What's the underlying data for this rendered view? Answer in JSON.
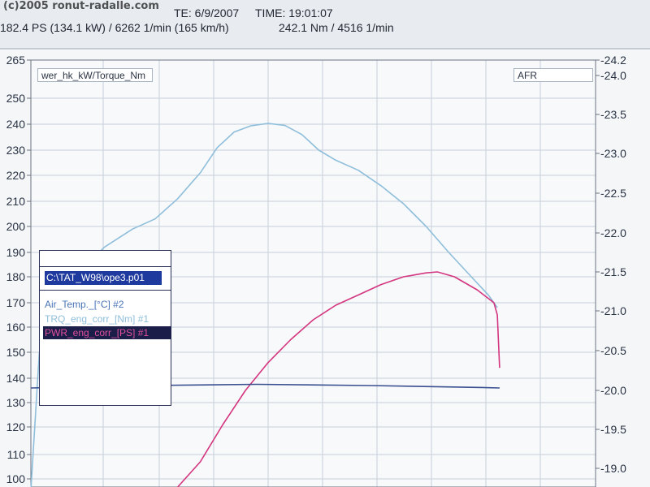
{
  "header": {
    "date_label": "TE: 6/9/2007",
    "time_label": "TIME: 19:01:07",
    "power_summary": "182.4 PS  (134.1 kW) / 6262 1/min (165 km/h)",
    "torque_summary": "242.1 Nm / 4516 1/min",
    "watermark": "(c)2005 ronut-radalle.com"
  },
  "axis_boxes": {
    "left_title": "wer_hk_kW/Torque_Nm",
    "right_title": "AFR"
  },
  "legend": {
    "file": "C:\\TAT_W98\\ope3.p01",
    "items": [
      {
        "label": "Air_Temp._[°C] #2",
        "color": "#4a74b8"
      },
      {
        "label": "TRQ_eng_corr_[Nm] #1",
        "color": "#8fbedb"
      },
      {
        "label": "PWR_eng_corr_[PS] #1",
        "color": "#e0509a",
        "highlight_bg": "#1c1e4a"
      }
    ]
  },
  "colors": {
    "torque": "#8fbedb",
    "power": "#d4357f",
    "air_temp": "#3a4f90",
    "grid": "#c7cfda",
    "axis": "#6b7380",
    "text": "#2a3344"
  },
  "chart_data": {
    "type": "line",
    "title": "",
    "left_axis": {
      "label": "wer_hk_kW/Torque_Nm",
      "ylim": [
        95,
        265
      ],
      "ticks": [
        100,
        110,
        120,
        130,
        140,
        150,
        160,
        170,
        180,
        190,
        200,
        210,
        220,
        230,
        240,
        250,
        265
      ]
    },
    "right_axis": {
      "label": "AFR",
      "ylim": [
        24.2,
        18.9
      ],
      "ticks": [
        24.2,
        24.0,
        23.5,
        23.0,
        22.5,
        22.0,
        21.5,
        21.0,
        20.5,
        20.0,
        19.5,
        19.0
      ],
      "tick_labels": [
        "-24.2",
        "-24.0",
        "-23.5",
        "-23.0",
        "-22.5",
        "-22.0",
        "-21.5",
        "-21.0",
        "-20.5",
        "-20.0",
        "-19.5",
        "-19.0"
      ]
    },
    "x_fraction_range": [
      0,
      1
    ],
    "grid": true,
    "series": [
      {
        "name": "TRQ_eng_corr_[Nm] #1",
        "axis": "left",
        "color": "#8fbedb",
        "points": [
          [
            0.0,
            93
          ],
          [
            0.015,
            150
          ],
          [
            0.04,
            165
          ],
          [
            0.09,
            183
          ],
          [
            0.13,
            192
          ],
          [
            0.18,
            199
          ],
          [
            0.22,
            203
          ],
          [
            0.26,
            211
          ],
          [
            0.3,
            221
          ],
          [
            0.33,
            231
          ],
          [
            0.36,
            237
          ],
          [
            0.39,
            239.4
          ],
          [
            0.42,
            240.3
          ],
          [
            0.45,
            239.5
          ],
          [
            0.48,
            236
          ],
          [
            0.51,
            230
          ],
          [
            0.54,
            226
          ],
          [
            0.58,
            222
          ],
          [
            0.62,
            216
          ],
          [
            0.66,
            209
          ],
          [
            0.7,
            200
          ],
          [
            0.74,
            190
          ],
          [
            0.78,
            180
          ],
          [
            0.81,
            173
          ],
          [
            0.826,
            168
          ]
        ]
      },
      {
        "name": "PWR_eng_corr_[PS] #1",
        "axis": "left",
        "color": "#d4357f",
        "points": [
          [
            0.26,
            95
          ],
          [
            0.3,
            107
          ],
          [
            0.34,
            121
          ],
          [
            0.38,
            135
          ],
          [
            0.42,
            146
          ],
          [
            0.46,
            155
          ],
          [
            0.5,
            163
          ],
          [
            0.54,
            169
          ],
          [
            0.58,
            173
          ],
          [
            0.62,
            177
          ],
          [
            0.66,
            180
          ],
          [
            0.7,
            181.6
          ],
          [
            0.72,
            182.0
          ],
          [
            0.75,
            180
          ],
          [
            0.79,
            175
          ],
          [
            0.82,
            170
          ],
          [
            0.826,
            165
          ],
          [
            0.83,
            144
          ]
        ]
      },
      {
        "name": "Air_Temp._[°C] #2",
        "axis": "left",
        "color": "#3a4f90",
        "points": [
          [
            0.0,
            136
          ],
          [
            0.2,
            137
          ],
          [
            0.4,
            137.5
          ],
          [
            0.6,
            137
          ],
          [
            0.8,
            136.2
          ],
          [
            0.83,
            136
          ]
        ]
      }
    ]
  }
}
